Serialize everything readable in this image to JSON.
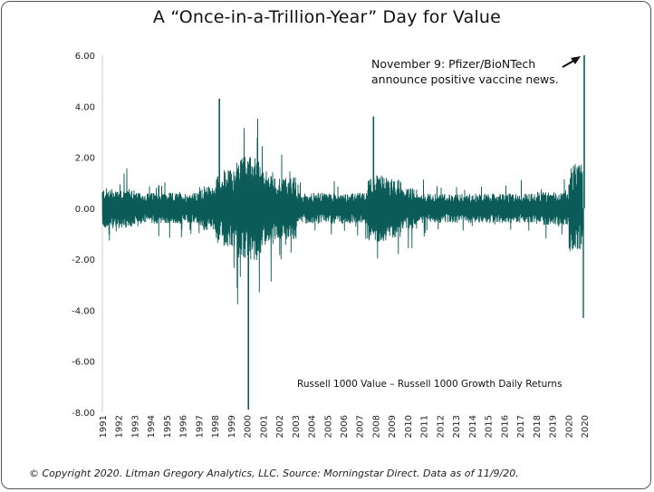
{
  "chart_data": {
    "type": "line",
    "title": "A “Once-in-a-Trillion-Year” Day for Value",
    "series": [
      {
        "name": "Russell 1000 Value – Russell 1000 Growth Daily Returns",
        "color": "#0b5c58"
      }
    ],
    "ylim": [
      -8,
      6
    ],
    "yticks": [
      "6.00",
      "4.00",
      "2.00",
      "0.00",
      "-2.00",
      "-4.00",
      "-6.00",
      "-8.00"
    ],
    "ytick_values": [
      6,
      4,
      2,
      0,
      -2,
      -4,
      -6,
      -8
    ],
    "xticks": [
      "1991",
      "1992",
      "1993",
      "1994",
      "1995",
      "1996",
      "1997",
      "1998",
      "1999",
      "2000",
      "2001",
      "2002",
      "2003",
      "2004",
      "2005",
      "2006",
      "2007",
      "2008",
      "2009",
      "2010",
      "2011",
      "2012",
      "2013",
      "2014",
      "2015",
      "2016",
      "2017",
      "2018",
      "2019",
      "2020",
      "2020"
    ],
    "xlim": [
      1991,
      2020.86
    ],
    "notable_points": [
      {
        "x": 2020.86,
        "y": 6.0,
        "label": "November 9: Pfizer/BioNTech announce positive vaccine news."
      },
      {
        "x": 2000.05,
        "y": -7.9
      },
      {
        "x": 1998.25,
        "y": 4.3
      },
      {
        "x": 2007.8,
        "y": 3.6
      }
    ],
    "annotation": {
      "line1": "November 9: Pfizer/BioNTech",
      "line2": "announce positive vaccine news."
    },
    "series_label": "Russell 1000 Value – Russell 1000 Growth Daily Returns"
  },
  "footer": "© Copyright 2020. Litman Gregory Analytics, LLC. Source: Morningstar Direct. Data as of 11/9/20."
}
